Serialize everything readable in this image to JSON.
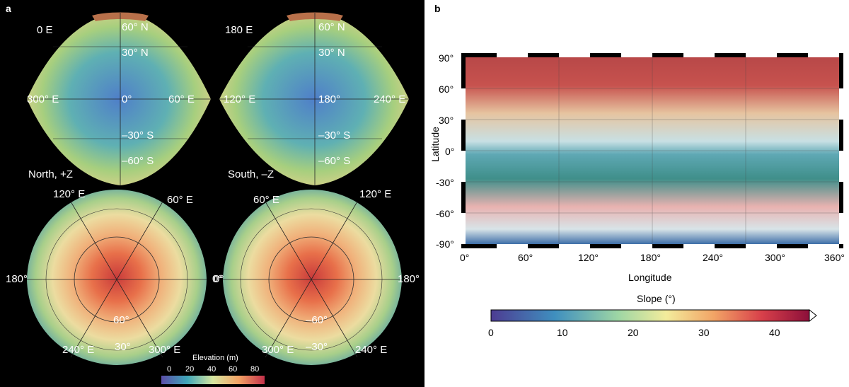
{
  "panel_a": {
    "label": "a",
    "top_left": {
      "view": "0 E",
      "lat1": "60° N",
      "lat2": "30° N",
      "left": "300° E",
      "center": "0°",
      "right": "60° E",
      "lat3": "–30° S",
      "lat4": "–60° S"
    },
    "top_right": {
      "view": "180 E",
      "lat1": "60° N",
      "lat2": "30° N",
      "left": "120° E",
      "center": "180°",
      "right": "240° E",
      "lat3": "–30° S",
      "lat4": "–60° S"
    },
    "bottom_left": {
      "title": "North, +Z",
      "top_left": "120° E",
      "top_right": "60° E",
      "left": "180°",
      "right": "0°",
      "inner": "60°",
      "inner2": "30°",
      "bot_left": "240° E",
      "bot_right": "300° E"
    },
    "bottom_right": {
      "title": "South, –Z",
      "top_left": "60° E",
      "top_right": "120° E",
      "left": "0°",
      "right": "180°",
      "inner": "–60°",
      "inner2": "–30°",
      "bot_left": "300° E",
      "bot_right": "240° E"
    },
    "colorbar": {
      "title": "Elevation (m)",
      "ticks": [
        "0",
        "20",
        "40",
        "60",
        "80"
      ]
    }
  },
  "panel_b": {
    "label": "b",
    "ylabel": "Latitude",
    "xlabel": "Longitude",
    "yticks": [
      "90°",
      "60°",
      "30°",
      "0°",
      "-30°",
      "-60°",
      "-90°"
    ],
    "xticks": [
      "0°",
      "60°",
      "120°",
      "180°",
      "240°",
      "300°",
      "360°"
    ],
    "colorbar": {
      "title": "Slope (°)",
      "ticks": [
        "0",
        "10",
        "20",
        "30",
        "40"
      ]
    }
  }
}
